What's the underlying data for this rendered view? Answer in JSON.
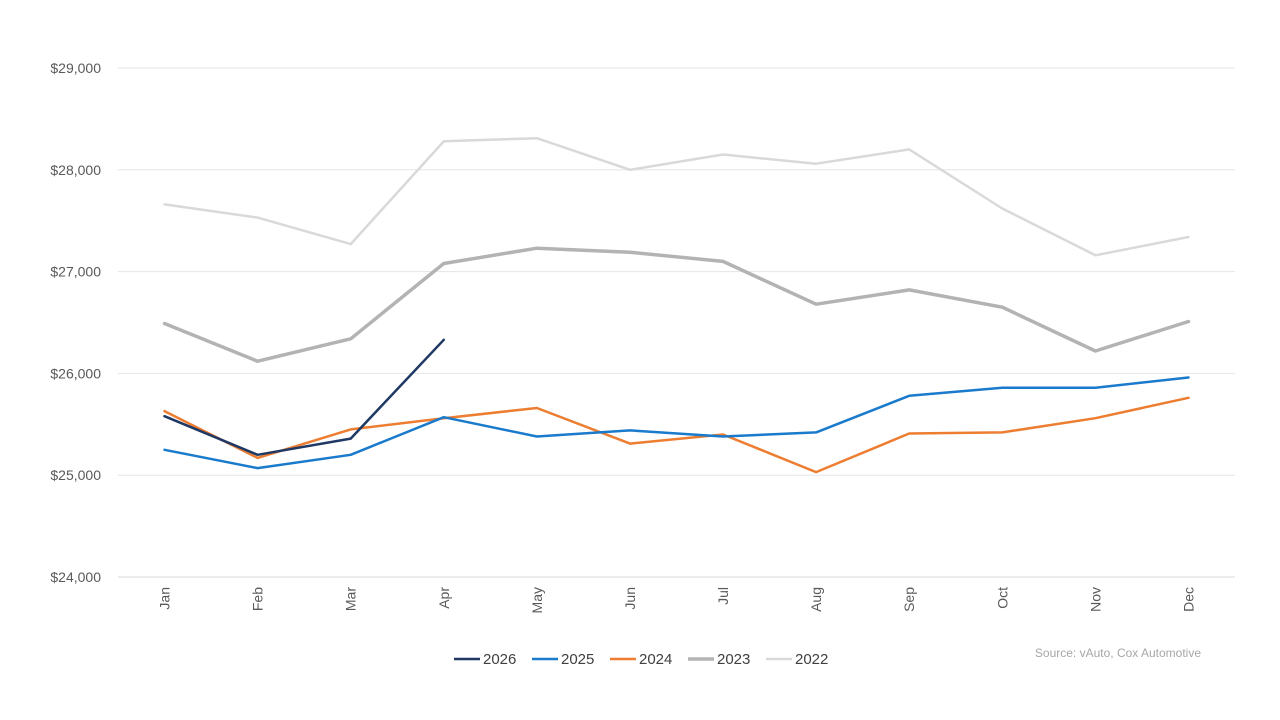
{
  "chart_data": {
    "type": "line",
    "title": "",
    "xlabel": "",
    "ylabel": "",
    "categories": [
      "Jan",
      "Feb",
      "Mar",
      "Apr",
      "May",
      "Jun",
      "Jul",
      "Aug",
      "Sep",
      "Oct",
      "Nov",
      "Dec"
    ],
    "ylim": [
      24000,
      29000
    ],
    "yticks": [
      24000,
      25000,
      26000,
      27000,
      28000,
      29000
    ],
    "ytick_labels": [
      "$24,000",
      "$25,000",
      "$26,000",
      "$27,000",
      "$28,000",
      "$29,000"
    ],
    "grid": true,
    "legend_position": "bottom",
    "series": [
      {
        "name": "2026",
        "color": "#1f3864",
        "values": [
          25580,
          25200,
          25360,
          26330,
          null,
          null,
          null,
          null,
          null,
          null,
          null,
          null
        ]
      },
      {
        "name": "2025",
        "color": "#1a7acb",
        "values": [
          25250,
          25070,
          25200,
          25570,
          25380,
          25440,
          25380,
          25420,
          25780,
          25860,
          25860,
          25960
        ]
      },
      {
        "name": "2024",
        "color": "#ed7d31",
        "values": [
          25630,
          25170,
          25450,
          25560,
          25660,
          25310,
          25400,
          25030,
          25410,
          25420,
          25560,
          25760
        ]
      },
      {
        "name": "2023",
        "color": "#b3b3b3",
        "values": [
          26490,
          26120,
          26340,
          27080,
          27230,
          27190,
          27100,
          26680,
          26820,
          26650,
          26220,
          26510
        ]
      },
      {
        "name": "2022",
        "color": "#d9d9d9",
        "values": [
          27660,
          27530,
          27270,
          28280,
          28310,
          28000,
          28150,
          28060,
          28200,
          27620,
          27160,
          27340
        ]
      }
    ]
  },
  "source": "Source: vAuto, Cox Automotive"
}
